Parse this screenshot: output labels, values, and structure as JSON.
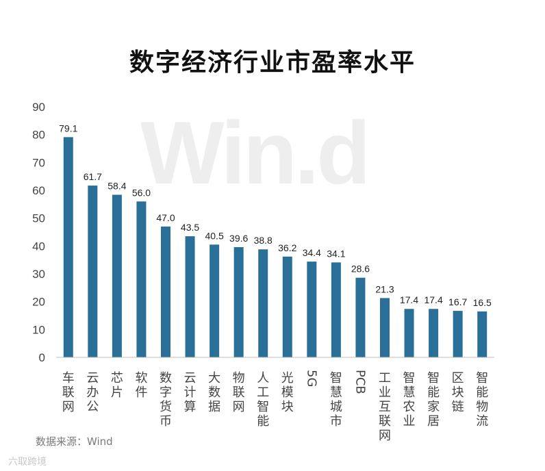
{
  "title": "数字经济行业市盈率水平",
  "watermark": "Win.d",
  "source": "数据来源：Wind",
  "brand": "六取跨境",
  "colors": {
    "bar": "#2a6f97",
    "axis_text": "#444444",
    "label_text": "#222222"
  },
  "chart_data": {
    "type": "bar",
    "title": "数字经济行业市盈率水平",
    "xlabel": "",
    "ylabel": "",
    "ylim": [
      0,
      90
    ],
    "yticks": [
      0,
      10,
      20,
      30,
      40,
      50,
      60,
      70,
      80,
      90
    ],
    "grid": false,
    "legend": "none",
    "categories": [
      "车联网",
      "云办公",
      "芯片",
      "软件",
      "数字货币",
      "云计算",
      "大数据",
      "物联网",
      "人工智能",
      "光模块",
      "5G",
      "智慧城市",
      "PCB",
      "工业互联网",
      "智慧农业",
      "智能家居",
      "区块链",
      "智能物流"
    ],
    "values": [
      79.1,
      61.7,
      58.4,
      56.0,
      47.0,
      43.5,
      40.5,
      39.6,
      38.8,
      36.2,
      34.4,
      34.1,
      28.6,
      21.3,
      17.4,
      17.4,
      16.7,
      16.5
    ],
    "value_labels": [
      "79.1",
      "61.7",
      "58.4",
      "56.0",
      "47.0",
      "43.5",
      "40.5",
      "39.6",
      "38.8",
      "36.2",
      "34.4",
      "34.1",
      "28.6",
      "21.3",
      "17.4",
      "17.4",
      "16.7",
      "16.5"
    ]
  }
}
